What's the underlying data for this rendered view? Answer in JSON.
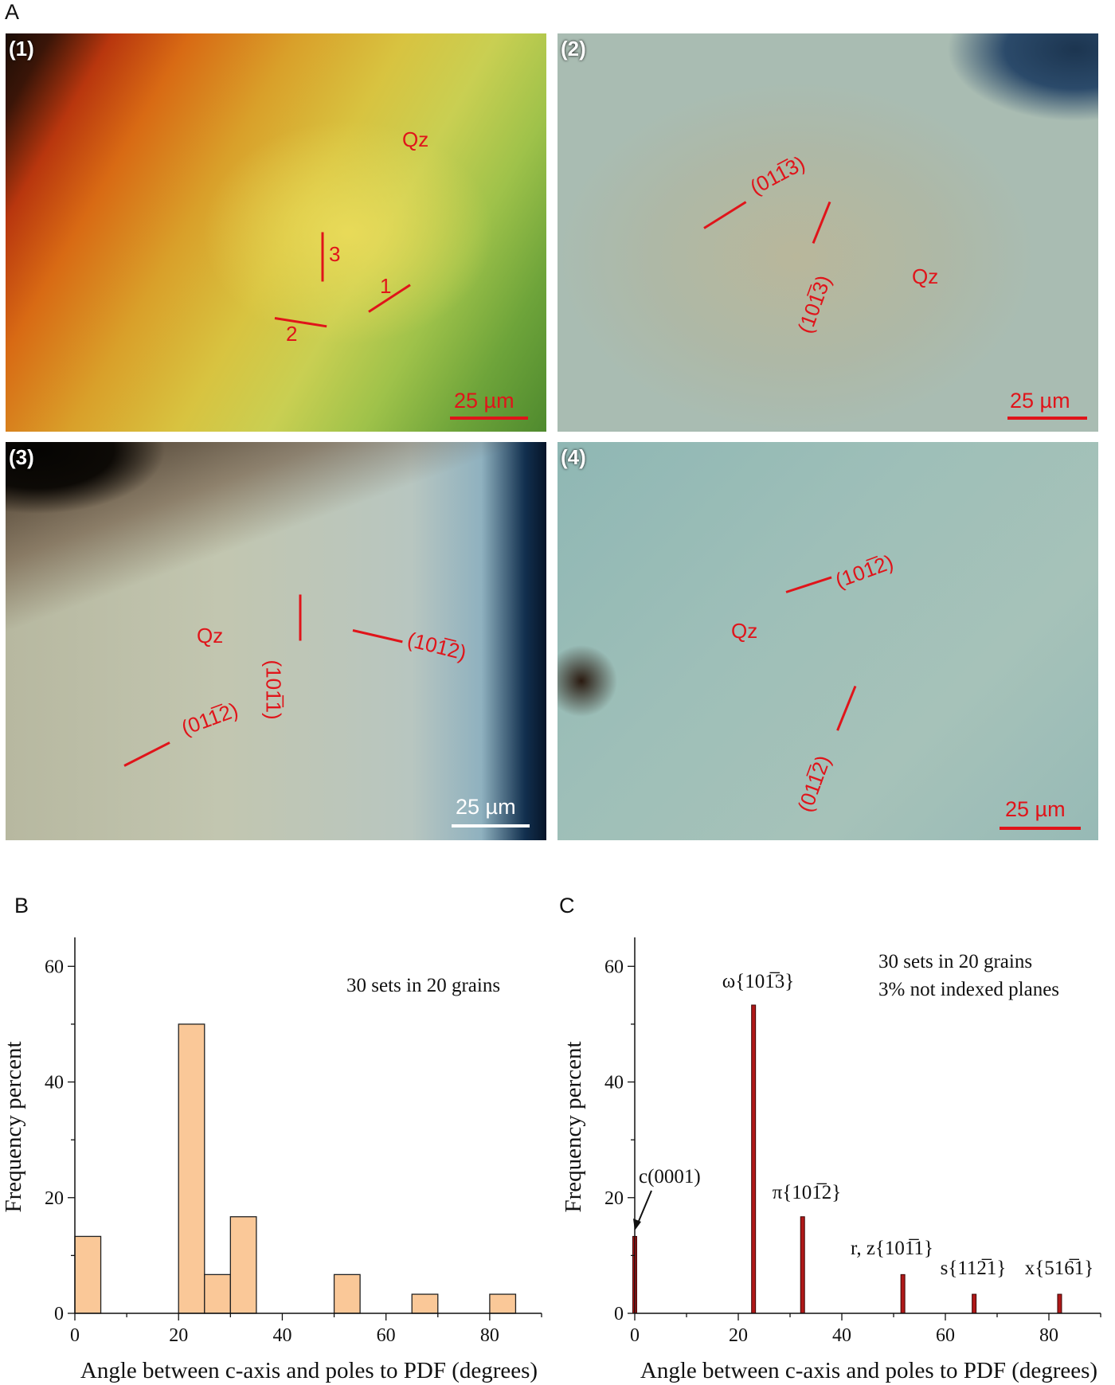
{
  "figure": {
    "panel_letters": {
      "a": "A",
      "b": "B",
      "c": "C"
    },
    "annotation_color": "#e0141a",
    "micrographs": [
      {
        "label": "(1)",
        "mineral": "Qz",
        "scale_bar": "25 µm",
        "scale_bar_color": "#e0141a",
        "set_labels": [
          "1",
          "2",
          "3"
        ]
      },
      {
        "label": "(2)",
        "mineral": "Qz",
        "scale_bar": "25 µm",
        "scale_bar_color": "#e0141a",
        "planes": [
          "(011̅3)",
          "(101̅3)"
        ]
      },
      {
        "label": "(3)",
        "mineral": "Qz",
        "scale_bar": "25 µm",
        "scale_bar_color": "#ffffff",
        "planes": [
          "(011̅2)",
          "(101̅1)",
          "(101̅2)"
        ]
      },
      {
        "label": "(4)",
        "mineral": "Qz",
        "scale_bar": "25 µm",
        "scale_bar_color": "#e0141a",
        "planes": [
          "(101̅2)",
          "(011̅2)"
        ]
      }
    ]
  },
  "chart_data": [
    {
      "type": "bar",
      "panel": "B",
      "xlabel": "Angle between c-axis and poles to PDF (degrees)",
      "ylabel": "Frequency percent",
      "xlim": [
        0,
        90
      ],
      "ylim": [
        0,
        65
      ],
      "xticks": [
        0,
        20,
        40,
        60,
        80
      ],
      "yticks": [
        0,
        20,
        40,
        60
      ],
      "annotation": "30 sets in 20 grains",
      "bar_color": "#fac898",
      "bin_width": 5,
      "bins": [
        {
          "start": 0,
          "end": 5,
          "value": 13.3
        },
        {
          "start": 20,
          "end": 25,
          "value": 50
        },
        {
          "start": 25,
          "end": 30,
          "value": 6.7
        },
        {
          "start": 30,
          "end": 35,
          "value": 16.7
        },
        {
          "start": 50,
          "end": 55,
          "value": 6.7
        },
        {
          "start": 65,
          "end": 70,
          "value": 3.3
        },
        {
          "start": 80,
          "end": 85,
          "value": 3.3
        }
      ]
    },
    {
      "type": "bar",
      "panel": "C",
      "xlabel": "Angle between c-axis and poles to PDF (degrees)",
      "ylabel": "Frequency percent",
      "xlim": [
        0,
        90
      ],
      "ylim": [
        0,
        65
      ],
      "xticks": [
        0,
        20,
        40,
        60,
        80
      ],
      "yticks": [
        0,
        20,
        40,
        60
      ],
      "annotations": [
        "30 sets in 20 grains",
        "3% not indexed planes"
      ],
      "bar_color": "#b01818",
      "peaks": [
        {
          "x": 0,
          "value": 13.3,
          "label": "c(0001)"
        },
        {
          "x": 22.95,
          "value": 53.3,
          "label": "ω{101̅3}"
        },
        {
          "x": 32.42,
          "value": 16.7,
          "label": "π{101̅2}"
        },
        {
          "x": 51.79,
          "value": 6.7,
          "label": "r, z{101̅1}"
        },
        {
          "x": 65.56,
          "value": 3.3,
          "label": "s{112̅1}"
        },
        {
          "x": 82.07,
          "value": 3.3,
          "label": "x{516̅1}"
        }
      ]
    }
  ]
}
